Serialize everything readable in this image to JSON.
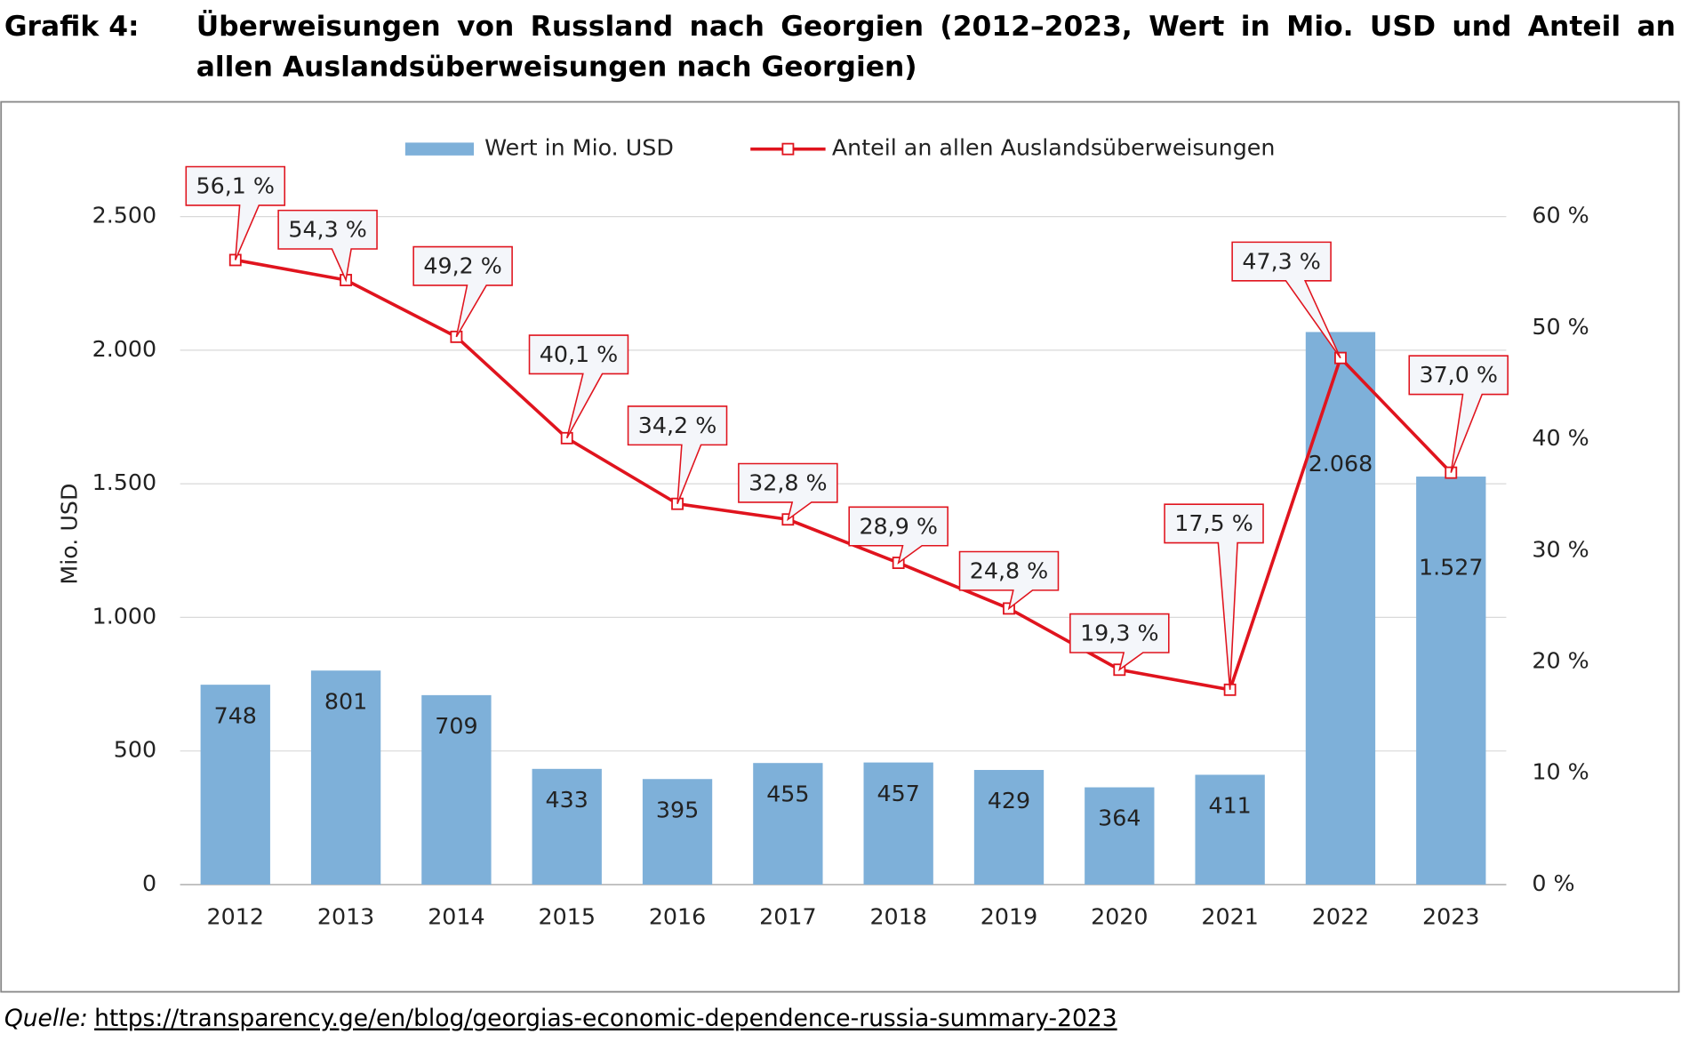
{
  "header": {
    "label": "Grafik 4:",
    "title": "Überweisungen von Russland nach Georgien (2012–2023, Wert in Mio. USD und Anteil an allen Auslandsüberweisungen nach Georgien)"
  },
  "chart_data": {
    "type": "bar-line",
    "y_label": "Mio. USD",
    "categories": [
      "2012",
      "2013",
      "2014",
      "2015",
      "2016",
      "2017",
      "2018",
      "2019",
      "2020",
      "2021",
      "2022",
      "2023"
    ],
    "series": [
      {
        "name": "Wert in Mio. USD",
        "type": "bar",
        "color": "#7eb0d9",
        "values": [
          748,
          801,
          709,
          433,
          395,
          455,
          457,
          429,
          364,
          411,
          2068,
          1527
        ],
        "value_labels": [
          "748",
          "801",
          "709",
          "433",
          "395",
          "455",
          "457",
          "429",
          "364",
          "411",
          "2.068",
          "1.527"
        ]
      },
      {
        "name": "Anteil an allen Auslandsüberweisungen",
        "type": "line",
        "axis": "y2",
        "color": "#e0141e",
        "values": [
          56.1,
          54.3,
          49.2,
          40.1,
          34.2,
          32.8,
          28.9,
          24.8,
          19.3,
          17.5,
          47.3,
          37.0
        ],
        "value_labels": [
          "56,1 %",
          "54,3 %",
          "49,2 %",
          "40,1 %",
          "34,2 %",
          "32,8 %",
          "28,9 %",
          "24,8 %",
          "19,3 %",
          "17,5 %",
          "47,3 %",
          "37,0 %"
        ]
      }
    ],
    "ylim": [
      0,
      2500
    ],
    "yticks": [
      0,
      500,
      {
        "value": 1000,
        "label": "1.000"
      },
      {
        "value": 1500,
        "label": "1.500"
      },
      {
        "value": 2000,
        "label": "2.000"
      },
      {
        "value": 2500,
        "label": "2.500"
      }
    ],
    "y2lim": [
      0,
      60
    ],
    "y2ticks": [
      {
        "value": 0,
        "label": "0 %"
      },
      {
        "value": 10,
        "label": "10 %"
      },
      {
        "value": 20,
        "label": "20 %"
      },
      {
        "value": 30,
        "label": "30 %"
      },
      {
        "value": 40,
        "label": "40 %"
      },
      {
        "value": 50,
        "label": "50 %"
      },
      {
        "value": 60,
        "label": "60 %"
      }
    ],
    "grid": true,
    "legend": "top"
  },
  "source": {
    "label": "Quelle:",
    "url": "https://transparency.ge/en/blog/georgias-economic-dependence-russia-summary-2023"
  }
}
